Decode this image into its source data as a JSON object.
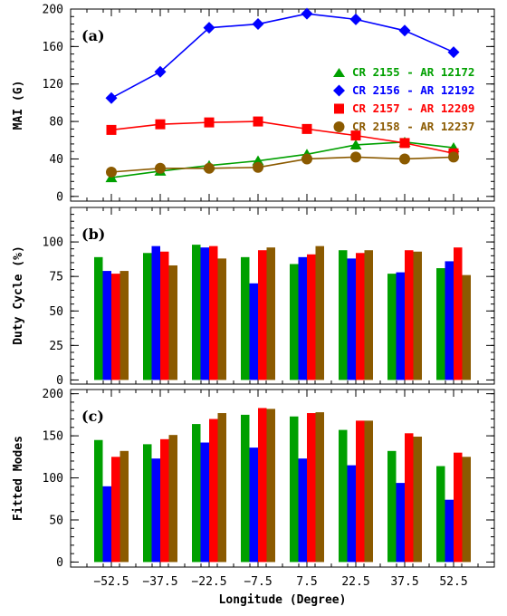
{
  "colors": {
    "series": [
      "#00a000",
      "#0000ff",
      "#ff0000",
      "#8b5a00"
    ],
    "frame": "#000000"
  },
  "chart_data": [
    {
      "type": "line",
      "panel_label": "(a)",
      "xlabel": "",
      "ylabel": "MAI (G)",
      "x": [
        -52.5,
        -37.5,
        -22.5,
        -7.5,
        7.5,
        22.5,
        37.5,
        52.5
      ],
      "xlim": [
        -65,
        65
      ],
      "ylim": [
        -5,
        200
      ],
      "yticks": [
        0,
        40,
        80,
        120,
        160,
        200
      ],
      "show_x_tick_labels": false,
      "legend_placement": "right",
      "series": [
        {
          "name": "CR 2155 - AR 12172",
          "marker": "triangle",
          "values": [
            20,
            27,
            33,
            38,
            45,
            55,
            58,
            52
          ]
        },
        {
          "name": "CR 2156 - AR 12192",
          "marker": "diamond",
          "values": [
            105,
            133,
            180,
            184,
            195,
            189,
            177,
            154
          ]
        },
        {
          "name": "CR 2157 - AR 12209",
          "marker": "square",
          "values": [
            71,
            77,
            79,
            80,
            72,
            65,
            57,
            46
          ]
        },
        {
          "name": "CR 2158 - AR 12237",
          "marker": "circle",
          "values": [
            26,
            30,
            30,
            31,
            40,
            42,
            40,
            42
          ]
        }
      ]
    },
    {
      "type": "bar",
      "panel_label": "(b)",
      "xlabel": "",
      "ylabel": "Duty Cycle (%)",
      "categories": [
        "-52.5",
        "-37.5",
        "-22.5",
        "-7.5",
        "7.5",
        "22.5",
        "37.5",
        "52.5"
      ],
      "ylim": [
        -3,
        125
      ],
      "yticks": [
        0,
        25,
        50,
        75,
        100
      ],
      "show_x_tick_labels": false,
      "series": [
        {
          "name": "CR 2155 - AR 12172",
          "values": [
            89,
            92,
            98,
            89,
            84,
            94,
            77,
            81
          ]
        },
        {
          "name": "CR 2156 - AR 12192",
          "values": [
            79,
            97,
            96,
            70,
            89,
            88,
            78,
            86
          ]
        },
        {
          "name": "CR 2157 - AR 12209",
          "values": [
            77,
            93,
            97,
            94,
            91,
            92,
            94,
            96
          ]
        },
        {
          "name": "CR 2158 - AR 12237",
          "values": [
            79,
            83,
            88,
            96,
            97,
            94,
            93,
            76
          ]
        }
      ]
    },
    {
      "type": "bar",
      "panel_label": "(c)",
      "xlabel": "Longitude (Degree)",
      "ylabel": "Fitted Modes",
      "categories": [
        "-52.5",
        "-37.5",
        "-22.5",
        "-7.5",
        "7.5",
        "22.5",
        "37.5",
        "52.5"
      ],
      "ylim": [
        -6,
        205
      ],
      "yticks": [
        0,
        50,
        100,
        150,
        200
      ],
      "show_x_tick_labels": true,
      "series": [
        {
          "name": "CR 2155 - AR 12172",
          "values": [
            145,
            140,
            164,
            175,
            173,
            157,
            132,
            114
          ]
        },
        {
          "name": "CR 2156 - AR 12192",
          "values": [
            90,
            123,
            142,
            136,
            123,
            115,
            94,
            74
          ]
        },
        {
          "name": "CR 2157 - AR 12209",
          "values": [
            125,
            146,
            170,
            183,
            177,
            168,
            153,
            130
          ]
        },
        {
          "name": "CR 2158 - AR 12237",
          "values": [
            132,
            151,
            177,
            182,
            178,
            168,
            149,
            125
          ]
        }
      ]
    }
  ]
}
